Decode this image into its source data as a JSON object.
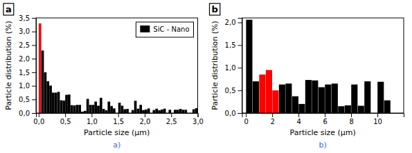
{
  "chart_data": [
    {
      "type": "bar",
      "title": "a",
      "xlabel": "Particle size (μm)",
      "ylabel": "Particle distribution (%)",
      "annotations": [
        {
          "text": "a)",
          "color": "#4169e1"
        }
      ],
      "legend": "upper right",
      "xlim": [
        -0.05,
        3.0
      ],
      "ylim": [
        0,
        3.5
      ],
      "xticks": [
        {
          "value": 0.0,
          "label": "0,0"
        },
        {
          "value": 0.5,
          "label": "0,5"
        },
        {
          "value": 1.0,
          "label": "1,0"
        },
        {
          "value": 1.5,
          "label": "1,5"
        },
        {
          "value": 2.0,
          "label": "2,0"
        },
        {
          "value": 2.5,
          "label": "2,5"
        },
        {
          "value": 3.0,
          "label": "3,0"
        }
      ],
      "yticks": [
        {
          "value": 0.0,
          "label": "0,0"
        },
        {
          "value": 0.5,
          "label": "0,5"
        },
        {
          "value": 1.0,
          "label": "1,0"
        },
        {
          "value": 1.5,
          "label": "1,5"
        },
        {
          "value": 2.0,
          "label": "2,0"
        },
        {
          "value": 2.5,
          "label": "2,5"
        },
        {
          "value": 3.0,
          "label": "3,0"
        },
        {
          "value": 3.5,
          "label": "3,5"
        }
      ],
      "x": [
        0.025,
        0.075,
        0.125,
        0.175,
        0.225,
        0.275,
        0.325,
        0.375,
        0.425,
        0.475,
        0.525,
        0.575,
        0.625,
        0.675,
        0.725,
        0.775,
        0.825,
        0.875,
        0.925,
        0.975,
        1.025,
        1.075,
        1.125,
        1.175,
        1.225,
        1.275,
        1.325,
        1.375,
        1.425,
        1.475,
        1.525,
        1.575,
        1.625,
        1.675,
        1.725,
        1.775,
        1.825,
        1.875,
        1.925,
        1.975,
        2.025,
        2.075,
        2.125,
        2.175,
        2.225,
        2.275,
        2.325,
        2.375,
        2.425,
        2.475,
        2.525,
        2.575,
        2.625,
        2.675,
        2.725,
        2.775,
        2.825,
        2.875,
        2.925,
        2.975
      ],
      "series": [
        {
          "name": "SiC - Nano",
          "color": "#000000",
          "values": [
            3.3,
            2.3,
            1.5,
            1.17,
            1.01,
            0.75,
            0.75,
            0.78,
            0.47,
            0.46,
            0.67,
            0.68,
            0.29,
            0.28,
            0.3,
            0.3,
            0.05,
            0.08,
            0.52,
            0.3,
            0.3,
            0.42,
            0.27,
            0.56,
            0.15,
            0.1,
            0.42,
            0.26,
            0.17,
            0.0,
            0.38,
            0.27,
            0.14,
            0.15,
            0.0,
            0.11,
            0.45,
            0.16,
            0.3,
            0.11,
            0.13,
            0.17,
            0.0,
            0.11,
            0.16,
            0.1,
            0.13,
            0.16,
            0.0,
            0.12,
            0.0,
            0.12,
            0.12,
            0.15,
            0.12,
            0.12,
            0.0,
            0.0,
            0.14,
            0.18
          ],
          "colors": [
            "#ff0000",
            "#000000",
            "#000000",
            "#000000",
            "#000000",
            "#000000",
            "#000000",
            "#000000",
            "#000000",
            "#000000",
            "#000000",
            "#000000",
            "#000000",
            "#000000",
            "#000000",
            "#000000",
            "#000000",
            "#000000",
            "#000000",
            "#000000",
            "#000000",
            "#000000",
            "#000000",
            "#000000",
            "#000000",
            "#000000",
            "#000000",
            "#000000",
            "#000000",
            "#000000",
            "#000000",
            "#000000",
            "#000000",
            "#000000",
            "#000000",
            "#000000",
            "#000000",
            "#000000",
            "#000000",
            "#000000",
            "#000000",
            "#000000",
            "#000000",
            "#000000",
            "#000000",
            "#000000",
            "#000000",
            "#000000",
            "#000000",
            "#000000",
            "#000000",
            "#000000",
            "#000000",
            "#000000",
            "#000000",
            "#000000",
            "#000000",
            "#000000",
            "#000000",
            "#000000"
          ]
        }
      ]
    },
    {
      "type": "bar",
      "title": "b",
      "xlabel": "Particle size (μm)",
      "ylabel": "Particle distribution (%)",
      "annotations": [
        {
          "text": "b)",
          "color": "#4169e1"
        }
      ],
      "xlim": [
        -0.3,
        12.0
      ],
      "ylim": [
        0,
        2.1
      ],
      "xticks": [
        0,
        2,
        4,
        6,
        8,
        10
      ],
      "yticks": [
        {
          "value": 0.0,
          "label": "0,0"
        },
        {
          "value": 0.5,
          "label": "0,5"
        },
        {
          "value": 1.0,
          "label": "1,0"
        },
        {
          "value": 1.5,
          "label": "1,5"
        },
        {
          "value": 2.0,
          "label": "2,0"
        }
      ],
      "x": [
        0.25,
        0.75,
        1.25,
        1.75,
        2.25,
        2.75,
        3.25,
        3.75,
        4.25,
        4.75,
        5.25,
        5.75,
        6.25,
        6.75,
        7.25,
        7.75,
        8.25,
        8.75,
        9.25,
        9.75,
        10.25,
        10.75
      ],
      "values": [
        2.06,
        0.7,
        0.85,
        0.95,
        0.5,
        0.63,
        0.65,
        0.37,
        0.2,
        0.73,
        0.72,
        0.57,
        0.63,
        0.65,
        0.15,
        0.17,
        0.63,
        0.16,
        0.7,
        0.0,
        0.69,
        0.28
      ],
      "colors": [
        "#000000",
        "#000000",
        "#ff0000",
        "#ff0000",
        "#ff0000",
        "#000000",
        "#000000",
        "#000000",
        "#000000",
        "#000000",
        "#000000",
        "#000000",
        "#000000",
        "#000000",
        "#000000",
        "#000000",
        "#000000",
        "#000000",
        "#000000",
        "#000000",
        "#000000",
        "#000000"
      ]
    }
  ]
}
